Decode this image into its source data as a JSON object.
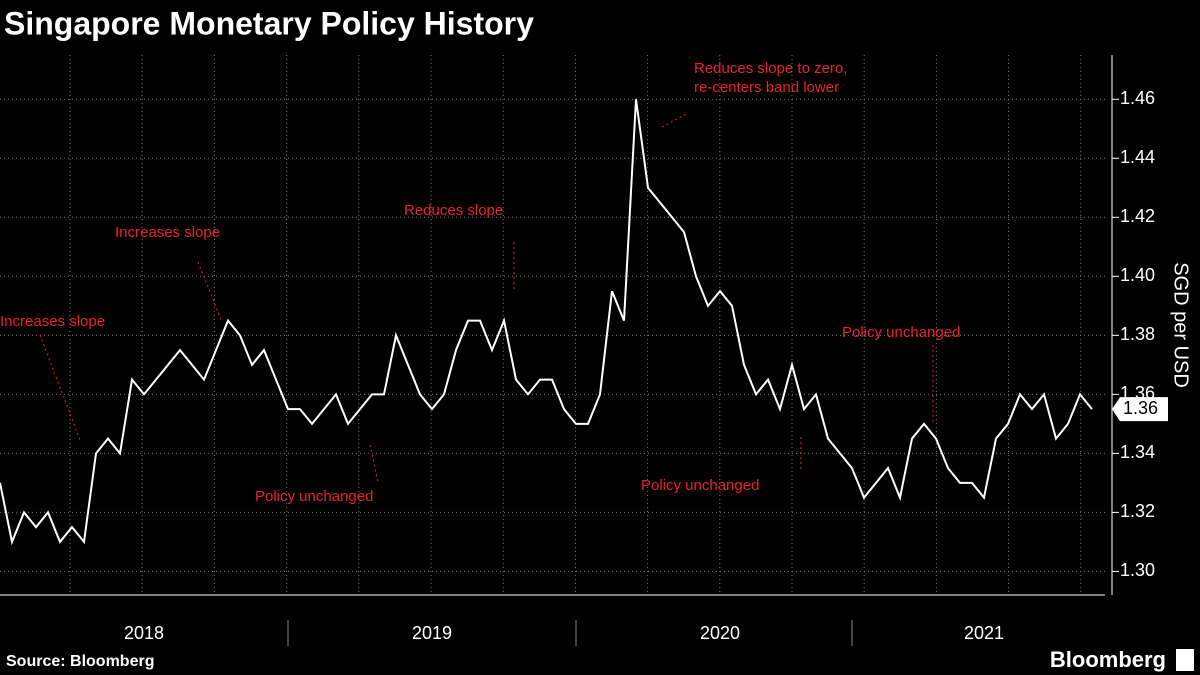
{
  "chart_data": {
    "type": "line",
    "title": "Singapore Monetary Policy History",
    "y_axis_label": "SGD per USD",
    "source": "Source: Bloomberg",
    "brand": "Bloomberg",
    "categories": [
      null,
      null,
      null,
      null,
      null,
      null,
      null,
      null,
      null,
      null,
      null,
      null,
      "2018",
      null,
      null,
      null,
      null,
      null,
      null,
      null,
      null,
      null,
      null,
      null,
      null,
      null,
      null,
      null,
      null,
      null,
      null,
      null,
      null,
      null,
      null,
      null,
      "2019",
      null,
      null,
      null,
      null,
      null,
      null,
      null,
      null,
      null,
      null,
      null,
      null,
      null,
      null,
      null,
      null,
      null,
      null,
      null,
      null,
      null,
      null,
      null,
      "2020",
      null,
      null,
      null,
      null,
      null,
      null,
      null,
      null,
      null,
      null,
      null,
      null,
      null,
      null,
      null,
      null,
      null,
      null,
      null,
      null,
      null,
      "2021",
      null,
      null,
      null,
      null,
      null,
      null,
      null,
      null,
      null
    ],
    "series": [
      {
        "name": "SGD per USD",
        "color": "#ffffff",
        "values": [
          1.33,
          1.31,
          1.32,
          1.315,
          1.32,
          1.31,
          1.315,
          1.31,
          1.34,
          1.345,
          1.34,
          1.365,
          1.36,
          1.365,
          1.37,
          1.375,
          1.37,
          1.365,
          1.375,
          1.385,
          1.38,
          1.37,
          1.375,
          1.365,
          1.355,
          1.355,
          1.35,
          1.355,
          1.36,
          1.35,
          1.355,
          1.36,
          1.36,
          1.38,
          1.37,
          1.36,
          1.355,
          1.36,
          1.375,
          1.385,
          1.385,
          1.375,
          1.385,
          1.365,
          1.36,
          1.365,
          1.365,
          1.355,
          1.35,
          1.35,
          1.36,
          1.395,
          1.385,
          1.46,
          1.43,
          1.425,
          1.42,
          1.415,
          1.4,
          1.39,
          1.395,
          1.39,
          1.37,
          1.36,
          1.365,
          1.355,
          1.37,
          1.355,
          1.36,
          1.345,
          1.34,
          1.335,
          1.325,
          1.33,
          1.335,
          1.325,
          1.345,
          1.35,
          1.345,
          1.335,
          1.33,
          1.33,
          1.325,
          1.345,
          1.35,
          1.36,
          1.355,
          1.36,
          1.345,
          1.35,
          1.36,
          1.355
        ],
        "value_labels": [
          null,
          null,
          null,
          null,
          null,
          null,
          null,
          null,
          null,
          null,
          null,
          null,
          null,
          null,
          null,
          null,
          null,
          null,
          null,
          null,
          null,
          null,
          null,
          null,
          null,
          null,
          null,
          null,
          null,
          null,
          null,
          null,
          null,
          null,
          null,
          null,
          null,
          null,
          null,
          null,
          null,
          null,
          null,
          null,
          null,
          null,
          null,
          null,
          null,
          null,
          null,
          null,
          null,
          null,
          null,
          null,
          null,
          null,
          null,
          null,
          null,
          null,
          null,
          null,
          null,
          null,
          null,
          null,
          null,
          null,
          null,
          null,
          null,
          null,
          null,
          null,
          null,
          null,
          null,
          null,
          null,
          null,
          null,
          null,
          null,
          null,
          null,
          null,
          null,
          null,
          null,
          "1.36"
        ]
      }
    ],
    "ylim": [
      1.292,
      1.475
    ],
    "yticks": [
      {
        "value": 1.3,
        "label": "1.30"
      },
      {
        "value": 1.32,
        "label": "1.32"
      },
      {
        "value": 1.34,
        "label": "1.34"
      },
      {
        "value": 1.36,
        "label": "1.36"
      },
      {
        "value": 1.38,
        "label": "1.38"
      },
      {
        "value": 1.4,
        "label": "1.40"
      },
      {
        "value": 1.42,
        "label": "1.42"
      },
      {
        "value": 1.44,
        "label": "1.44"
      },
      {
        "value": 1.46,
        "label": "1.46"
      }
    ],
    "grid": true,
    "annotations": [
      [
        "Increases slope"
      ],
      [
        "Increases slope"
      ],
      [
        "Reduces slope"
      ],
      [
        "Reduces slope to zero,",
        "re-centers band lower"
      ],
      [
        "Policy unchanged"
      ],
      [
        "Policy unchanged"
      ],
      [
        "Policy unchanged"
      ]
    ]
  }
}
